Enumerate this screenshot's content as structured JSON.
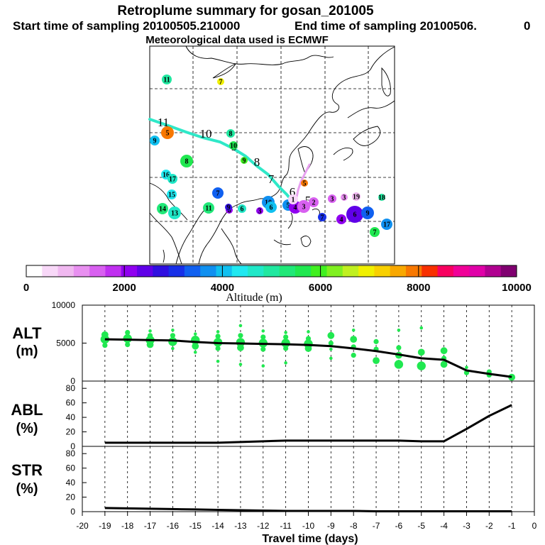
{
  "header": {
    "title": "Retroplume summary for gosan_201005",
    "start_label": "Start time of sampling 20100505.210000",
    "end_label": "End time of sampling 20100506.",
    "end_value": "0",
    "met_label": "Meteorological data used is ECMWF"
  },
  "map": {
    "trajectory_color": "#2fe8c8",
    "secondary_color": "#e8a0f0",
    "trajectory_labels": [
      "11",
      "10",
      "9",
      "8",
      "7",
      "6",
      "5"
    ],
    "clusters": [
      {
        "label": "11",
        "alt": 5000
      },
      {
        "label": "9",
        "alt": 4000
      },
      {
        "label": "8",
        "alt": 5500
      },
      {
        "label": "7",
        "alt": 3500
      },
      {
        "label": "6",
        "alt": 2200
      },
      {
        "label": "5",
        "alt": 8000
      },
      {
        "label": "10",
        "alt": 5700
      },
      {
        "label": "9",
        "alt": 5900
      },
      {
        "label": "8",
        "alt": 4900
      },
      {
        "label": "7",
        "alt": 6800
      },
      {
        "label": "16",
        "alt": 4200
      },
      {
        "label": "15",
        "alt": 4300
      },
      {
        "label": "17",
        "alt": 4600
      },
      {
        "label": "14",
        "alt": 5200
      },
      {
        "label": "13",
        "alt": 4800
      },
      {
        "label": "11",
        "alt": 5200
      },
      {
        "label": "9",
        "alt": 2600
      },
      {
        "label": "6",
        "alt": 4600
      },
      {
        "label": "3",
        "alt": 2100
      },
      {
        "label": "10",
        "alt": 3600
      },
      {
        "label": "6",
        "alt": 3900
      },
      {
        "label": "5",
        "alt": 3700
      },
      {
        "label": "4",
        "alt": 2200
      },
      {
        "label": "3",
        "alt": 1500
      },
      {
        "label": "2",
        "alt": 1300
      },
      {
        "label": "1",
        "alt": 400
      },
      {
        "label": "3",
        "alt": 1300
      },
      {
        "label": "3",
        "alt": 1100
      },
      {
        "label": "19",
        "alt": 800
      },
      {
        "label": "18",
        "alt": 5000
      },
      {
        "label": "4",
        "alt": 2000
      },
      {
        "label": "6",
        "alt": 2300
      },
      {
        "label": "9",
        "alt": 3400
      },
      {
        "label": "7",
        "alt": 3000
      },
      {
        "label": "17",
        "alt": 3700
      },
      {
        "label": "5",
        "alt": 8000
      },
      {
        "label": "7",
        "alt": 5600
      }
    ]
  },
  "colorbar": {
    "title": "Altitude (m)",
    "ticks": [
      "0",
      "2000",
      "4000",
      "6000",
      "8000",
      "10000"
    ],
    "colors": [
      "#ffffff",
      "#f8d8f8",
      "#f0b8f0",
      "#e890f0",
      "#d860f0",
      "#c030f0",
      "#9000f0",
      "#6000e8",
      "#3010e0",
      "#1830e8",
      "#1060f0",
      "#1090f0",
      "#10c0f0",
      "#20e8f0",
      "#20e8c8",
      "#20e8a0",
      "#20e878",
      "#20e850",
      "#40f020",
      "#80f020",
      "#c0f020",
      "#f0f000",
      "#f8d000",
      "#f8a800",
      "#f87800",
      "#f83000",
      "#f80060",
      "#f00098",
      "#e000a8",
      "#b00090",
      "#800070"
    ]
  },
  "panels": {
    "alt": {
      "label": "ALT",
      "unit": "(m)",
      "ticks": [
        "0",
        "5000",
        "10000"
      ]
    },
    "abl": {
      "label": "ABL",
      "unit": "(%)",
      "ticks": [
        "0",
        "20",
        "40",
        "60",
        "80"
      ]
    },
    "str": {
      "label": "STR",
      "unit": "(%)",
      "ticks": [
        "0",
        "20",
        "40",
        "60",
        "80"
      ]
    }
  },
  "x_axis": {
    "label": "Travel time (days)",
    "ticks": [
      "-20",
      "-19",
      "-18",
      "-17",
      "-16",
      "-15",
      "-14",
      "-13",
      "-12",
      "-11",
      "-10",
      "-9",
      "-8",
      "-7",
      "-6",
      "-5",
      "-4",
      "-3",
      "-2",
      "-1",
      "0"
    ]
  },
  "chart_data": [
    {
      "type": "line",
      "title": "ALT",
      "ylabel": "ALT (m)",
      "xlabel": "Travel time (days)",
      "xlim": [
        -20,
        0
      ],
      "ylim": [
        0,
        10000
      ],
      "x": [
        -19,
        -18,
        -17,
        -16,
        -15,
        -14,
        -13,
        -12,
        -11,
        -10,
        -9,
        -8,
        -7,
        -6,
        -5,
        -4,
        -3,
        -2,
        -1
      ],
      "series": [
        {
          "name": "mean altitude",
          "values": [
            5500,
            5450,
            5400,
            5350,
            5150,
            5000,
            4950,
            4900,
            4850,
            4750,
            4600,
            4300,
            3950,
            3500,
            3000,
            2800,
            1400,
            950,
            550
          ]
        }
      ],
      "scatter": [
        {
          "x": -19,
          "y": 6100,
          "s": 3
        },
        {
          "x": -19,
          "y": 5500,
          "s": 4
        },
        {
          "x": -19,
          "y": 4700,
          "s": 2
        },
        {
          "x": -18,
          "y": 6400,
          "s": 2
        },
        {
          "x": -18,
          "y": 5600,
          "s": 4
        },
        {
          "x": -18,
          "y": 4800,
          "s": 2
        },
        {
          "x": -17,
          "y": 6600,
          "s": 1
        },
        {
          "x": -17,
          "y": 6000,
          "s": 2
        },
        {
          "x": -17,
          "y": 5400,
          "s": 4
        },
        {
          "x": -17,
          "y": 4800,
          "s": 3
        },
        {
          "x": -16,
          "y": 6700,
          "s": 1
        },
        {
          "x": -16,
          "y": 6000,
          "s": 2
        },
        {
          "x": -16,
          "y": 5200,
          "s": 4
        },
        {
          "x": -16,
          "y": 4300,
          "s": 1
        },
        {
          "x": -15,
          "y": 6200,
          "s": 1
        },
        {
          "x": -15,
          "y": 5400,
          "s": 4
        },
        {
          "x": -15,
          "y": 4600,
          "s": 3
        },
        {
          "x": -15,
          "y": 3800,
          "s": 1
        },
        {
          "x": -14,
          "y": 6500,
          "s": 1
        },
        {
          "x": -14,
          "y": 5900,
          "s": 2
        },
        {
          "x": -14,
          "y": 5100,
          "s": 4
        },
        {
          "x": -14,
          "y": 4300,
          "s": 2
        },
        {
          "x": -14,
          "y": 2600,
          "s": 1
        },
        {
          "x": -13,
          "y": 7300,
          "s": 1
        },
        {
          "x": -13,
          "y": 6000,
          "s": 2
        },
        {
          "x": -13,
          "y": 5100,
          "s": 4
        },
        {
          "x": -13,
          "y": 4400,
          "s": 3
        },
        {
          "x": -13,
          "y": 2200,
          "s": 1
        },
        {
          "x": -12,
          "y": 6600,
          "s": 1
        },
        {
          "x": -12,
          "y": 5800,
          "s": 2
        },
        {
          "x": -12,
          "y": 5000,
          "s": 4
        },
        {
          "x": -12,
          "y": 4200,
          "s": 2
        },
        {
          "x": -12,
          "y": 2000,
          "s": 1
        },
        {
          "x": -11,
          "y": 6400,
          "s": 1
        },
        {
          "x": -11,
          "y": 5800,
          "s": 2
        },
        {
          "x": -11,
          "y": 5000,
          "s": 4
        },
        {
          "x": -11,
          "y": 4300,
          "s": 2
        },
        {
          "x": -11,
          "y": 2400,
          "s": 1
        },
        {
          "x": -10,
          "y": 6500,
          "s": 1
        },
        {
          "x": -10,
          "y": 5600,
          "s": 2
        },
        {
          "x": -10,
          "y": 4900,
          "s": 4
        },
        {
          "x": -10,
          "y": 4300,
          "s": 3
        },
        {
          "x": -9,
          "y": 6000,
          "s": 3
        },
        {
          "x": -9,
          "y": 5000,
          "s": 2
        },
        {
          "x": -9,
          "y": 4200,
          "s": 1
        },
        {
          "x": -9,
          "y": 3000,
          "s": 1
        },
        {
          "x": -8,
          "y": 6700,
          "s": 1
        },
        {
          "x": -8,
          "y": 5500,
          "s": 3
        },
        {
          "x": -8,
          "y": 4500,
          "s": 2
        },
        {
          "x": -8,
          "y": 3400,
          "s": 2
        },
        {
          "x": -7,
          "y": 5200,
          "s": 2
        },
        {
          "x": -7,
          "y": 4200,
          "s": 2
        },
        {
          "x": -7,
          "y": 2700,
          "s": 3
        },
        {
          "x": -6,
          "y": 6700,
          "s": 1
        },
        {
          "x": -6,
          "y": 4400,
          "s": 2
        },
        {
          "x": -6,
          "y": 3400,
          "s": 3
        },
        {
          "x": -6,
          "y": 2200,
          "s": 4
        },
        {
          "x": -5,
          "y": 7000,
          "s": 1
        },
        {
          "x": -5,
          "y": 3800,
          "s": 3
        },
        {
          "x": -5,
          "y": 2000,
          "s": 4
        },
        {
          "x": -4,
          "y": 4000,
          "s": 3
        },
        {
          "x": -4,
          "y": 3000,
          "s": 2
        },
        {
          "x": -4,
          "y": 2200,
          "s": 3
        },
        {
          "x": -3,
          "y": 1800,
          "s": 1
        },
        {
          "x": -3,
          "y": 1100,
          "s": 2
        },
        {
          "x": -2,
          "y": 1200,
          "s": 2
        },
        {
          "x": -2,
          "y": 800,
          "s": 2
        },
        {
          "x": -1,
          "y": 500,
          "s": 3
        }
      ]
    },
    {
      "type": "line",
      "title": "ABL",
      "ylabel": "ABL (%)",
      "xlabel": "Travel time (days)",
      "xlim": [
        -20,
        0
      ],
      "ylim": [
        0,
        90
      ],
      "x": [
        -19,
        -18,
        -17,
        -16,
        -15,
        -14,
        -13,
        -12,
        -11,
        -10,
        -9,
        -8,
        -7,
        -6,
        -5,
        -4,
        -3,
        -2,
        -1
      ],
      "series": [
        {
          "name": "ABL fraction",
          "values": [
            5,
            5,
            5,
            5,
            5,
            5,
            6,
            7,
            8,
            8,
            8,
            8,
            8,
            8,
            7,
            7,
            24,
            42,
            57
          ]
        }
      ]
    },
    {
      "type": "line",
      "title": "STR",
      "ylabel": "STR (%)",
      "xlabel": "Travel time (days)",
      "xlim": [
        -20,
        0
      ],
      "ylim": [
        0,
        90
      ],
      "x": [
        -19,
        -18,
        -17,
        -16,
        -15,
        -14,
        -13,
        -12,
        -11,
        -10,
        -9,
        -8,
        -7,
        -6,
        -5,
        -4,
        -3,
        -2,
        -1
      ],
      "series": [
        {
          "name": "stratospheric fraction",
          "values": [
            5,
            4.5,
            4,
            3.5,
            3,
            2.5,
            2,
            1.5,
            1,
            1,
            1,
            1,
            0.5,
            0.5,
            0.5,
            0.5,
            0.5,
            0.5,
            0.5
          ]
        }
      ]
    }
  ]
}
